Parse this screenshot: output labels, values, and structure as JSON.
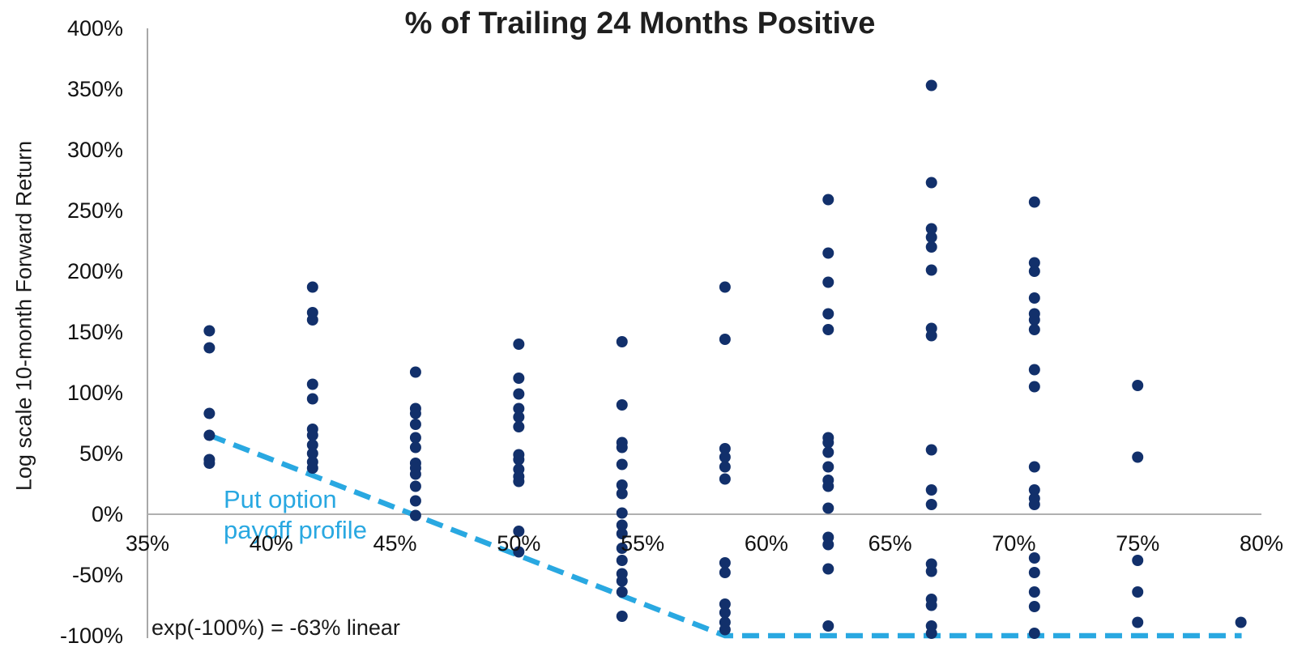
{
  "title": "% of Trailing 24 Months Positive",
  "y_axis_label": "Log scale 10-month Forward Return",
  "annotation": "exp(-100%) = -63% linear",
  "payoff_label": {
    "line1": "Put option",
    "line2": "payoff profile"
  },
  "colors": {
    "dot": "#12306b",
    "payoff_line": "#29a8e1",
    "label_blue": "#29a8e1",
    "axis_gray": "#a8a8a8",
    "gridline_gray": "#b0b0b0",
    "text": "#1a1a1a"
  },
  "chart_data": {
    "type": "scatter",
    "title": "% of Trailing 24 Months Positive",
    "xlabel": "",
    "ylabel": "Log scale 10-month Forward Return",
    "xlim": [
      35,
      80
    ],
    "ylim": [
      -100,
      400
    ],
    "grid": "horizontal gridline at 0% only; vertical axis line at x=35%",
    "legend": "none",
    "x_ticks": [
      {
        "v": 35,
        "label": "35%"
      },
      {
        "v": 40,
        "label": "40%"
      },
      {
        "v": 45,
        "label": "45%"
      },
      {
        "v": 50,
        "label": "50%"
      },
      {
        "v": 55,
        "label": "55%"
      },
      {
        "v": 60,
        "label": "60%"
      },
      {
        "v": 65,
        "label": "65%"
      },
      {
        "v": 70,
        "label": "70%"
      },
      {
        "v": 75,
        "label": "75%"
      },
      {
        "v": 80,
        "label": "80%"
      }
    ],
    "y_ticks": [
      {
        "v": 400,
        "label": "400%"
      },
      {
        "v": 350,
        "label": "350%"
      },
      {
        "v": 300,
        "label": "300%"
      },
      {
        "v": 250,
        "label": "250%"
      },
      {
        "v": 200,
        "label": "200%"
      },
      {
        "v": 150,
        "label": "150%"
      },
      {
        "v": 100,
        "label": "100%"
      },
      {
        "v": 50,
        "label": "50%"
      },
      {
        "v": 0,
        "label": "0%"
      },
      {
        "v": -50,
        "label": "-50%"
      },
      {
        "v": -100,
        "label": "-100%"
      }
    ],
    "series_name": "Log scale 10-month forward return vs % of trailing 24 months positive",
    "columns": [
      {
        "x": 37.5,
        "ys": [
          151,
          137,
          83,
          65,
          45,
          42
        ]
      },
      {
        "x": 41.67,
        "ys": [
          187,
          166,
          160,
          107,
          95,
          70,
          65,
          57,
          50,
          43,
          38
        ]
      },
      {
        "x": 45.83,
        "ys": [
          117,
          87,
          83,
          74,
          63,
          55,
          42,
          38,
          33,
          23,
          11,
          -1
        ]
      },
      {
        "x": 50.0,
        "ys": [
          140,
          112,
          99,
          87,
          80,
          72,
          49,
          45,
          37,
          31,
          27,
          -14,
          -31
        ]
      },
      {
        "x": 54.17,
        "ys": [
          142,
          90,
          59,
          55,
          41,
          24,
          17,
          1,
          -9,
          -16,
          -28,
          -38,
          -49,
          -55,
          -64,
          -84
        ]
      },
      {
        "x": 58.33,
        "ys": [
          187,
          144,
          54,
          47,
          39,
          29,
          -40,
          -48,
          -74,
          -81,
          -89,
          -95
        ]
      },
      {
        "x": 62.5,
        "ys": [
          259,
          215,
          191,
          165,
          152,
          63,
          59,
          51,
          39,
          28,
          23,
          5,
          -19,
          -25,
          -45,
          -92
        ]
      },
      {
        "x": 66.67,
        "ys": [
          353,
          273,
          235,
          228,
          220,
          201,
          153,
          147,
          53,
          20,
          8,
          -41,
          -47,
          -70,
          -75,
          -92,
          -98
        ]
      },
      {
        "x": 70.83,
        "ys": [
          257,
          207,
          200,
          178,
          165,
          160,
          152,
          119,
          105,
          39,
          20,
          13,
          8,
          -36,
          -48,
          -64,
          -76,
          -98
        ]
      },
      {
        "x": 75.0,
        "ys": [
          106,
          47,
          -38,
          -64,
          -89
        ]
      },
      {
        "x": 79.17,
        "ys": [
          -89
        ]
      }
    ],
    "payoff_line": {
      "label": "Put option payoff profile",
      "points": [
        [
          37.5,
          65
        ],
        [
          58.33,
          -100
        ],
        [
          79.2,
          -100
        ]
      ]
    }
  }
}
